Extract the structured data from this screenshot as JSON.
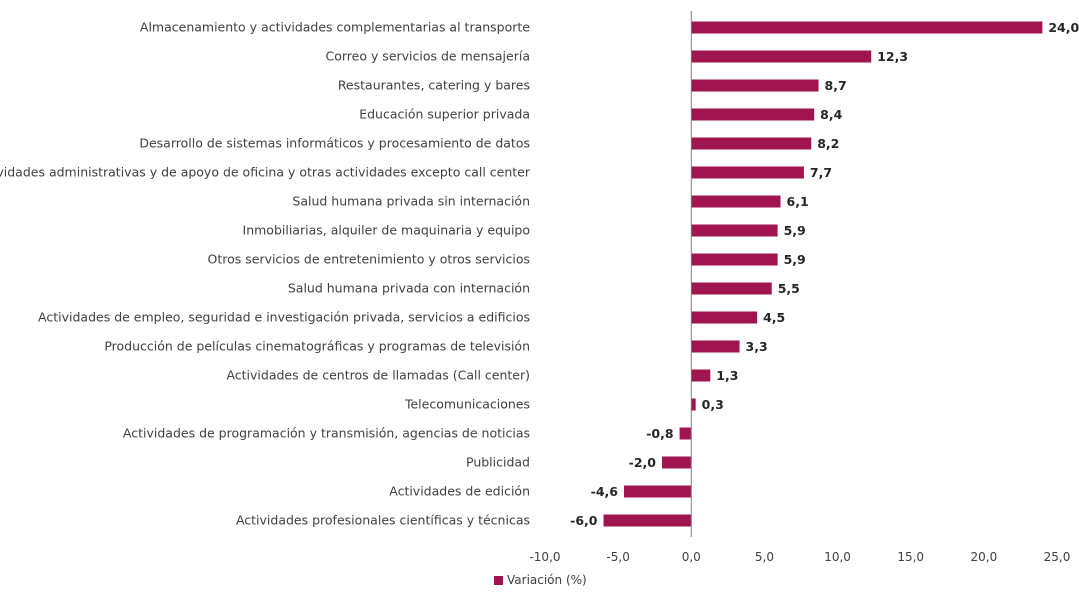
{
  "chart_data": {
    "type": "bar",
    "orientation": "horizontal",
    "categories": [
      "Almacenamiento y actividades complementarias al transporte",
      "Correo y servicios de mensajería",
      "Restaurantes, catering y bares",
      "Educación superior privada",
      "Desarrollo de sistemas informáticos y procesamiento de datos",
      "Actividades administrativas y de apoyo de oficina y otras actividades excepto call center",
      "Salud humana privada sin internación",
      "Inmobiliarias, alquiler de maquinaria y equipo",
      "Otros servicios de entretenimiento y otros servicios",
      "Salud humana privada con internación",
      "Actividades de empleo, seguridad e investigación privada, servicios a edificios",
      "Producción de películas cinematográficas y programas de televisión",
      "Actividades de centros de llamadas (Call center)",
      "Telecomunicaciones",
      "Actividades de programación y transmisión,  agencias de noticias",
      "Publicidad",
      "Actividades de edición",
      "Actividades profesionales científicas y técnicas"
    ],
    "series": [
      {
        "name": "Variación (%)",
        "values": [
          24.0,
          12.3,
          8.7,
          8.4,
          8.2,
          7.7,
          6.1,
          5.9,
          5.9,
          5.5,
          4.5,
          3.3,
          1.3,
          0.3,
          -0.8,
          -2.0,
          -4.6,
          -6.0
        ],
        "value_labels": [
          "24,0",
          "12,3",
          "8,7",
          "8,4",
          "8,2",
          "7,7",
          "6,1",
          "5,9",
          "5,9",
          "5,5",
          "4,5",
          "3,3",
          "1,3",
          "0,3",
          "-0,8",
          "-2,0",
          "-4,6",
          "-6,0"
        ],
        "color": "#a0154f"
      }
    ],
    "x_ticks": [
      -10,
      -5,
      0,
      5,
      10,
      15,
      20,
      25
    ],
    "x_tick_labels": [
      "-10,0",
      "-5,0",
      "0,0",
      "5,0",
      "10,0",
      "15,0",
      "20,0",
      "25,0"
    ],
    "xlim": [
      -10,
      25
    ],
    "title": "",
    "xlabel": "",
    "ylabel": "",
    "grid": false,
    "legend_position": "bottom-center"
  },
  "legend": {
    "label": "Variación (%)"
  }
}
